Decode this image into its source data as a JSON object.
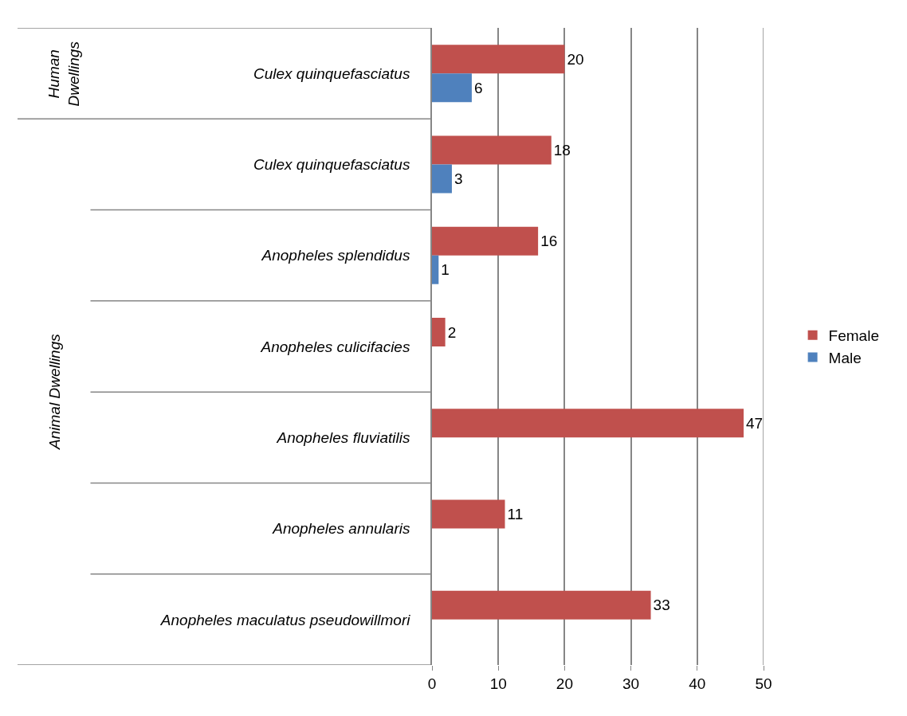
{
  "chart_data": {
    "type": "bar",
    "orientation": "horizontal",
    "categories": [
      "Culex quinquefasciatus",
      "Culex quinquefasciatus",
      "Anopheles splendidus",
      "Anopheles culicifacies",
      "Anopheles fluviatilis",
      "Anopheles annularis",
      "Anopheles maculatus pseudowillmori"
    ],
    "series": [
      {
        "name": "Female",
        "color": "#c0504d",
        "values": [
          20,
          18,
          16,
          2,
          47,
          11,
          33
        ]
      },
      {
        "name": "Male",
        "color": "#4f81bd",
        "values": [
          6,
          3,
          1,
          null,
          null,
          null,
          null
        ]
      }
    ],
    "xlim": [
      0,
      50
    ],
    "xticks": [
      0,
      10,
      20,
      30,
      40,
      50
    ],
    "grid": "x",
    "legend": "right",
    "data_labels": true,
    "annotations": [
      "Human Dwellings",
      "Animal Dwellings"
    ]
  }
}
